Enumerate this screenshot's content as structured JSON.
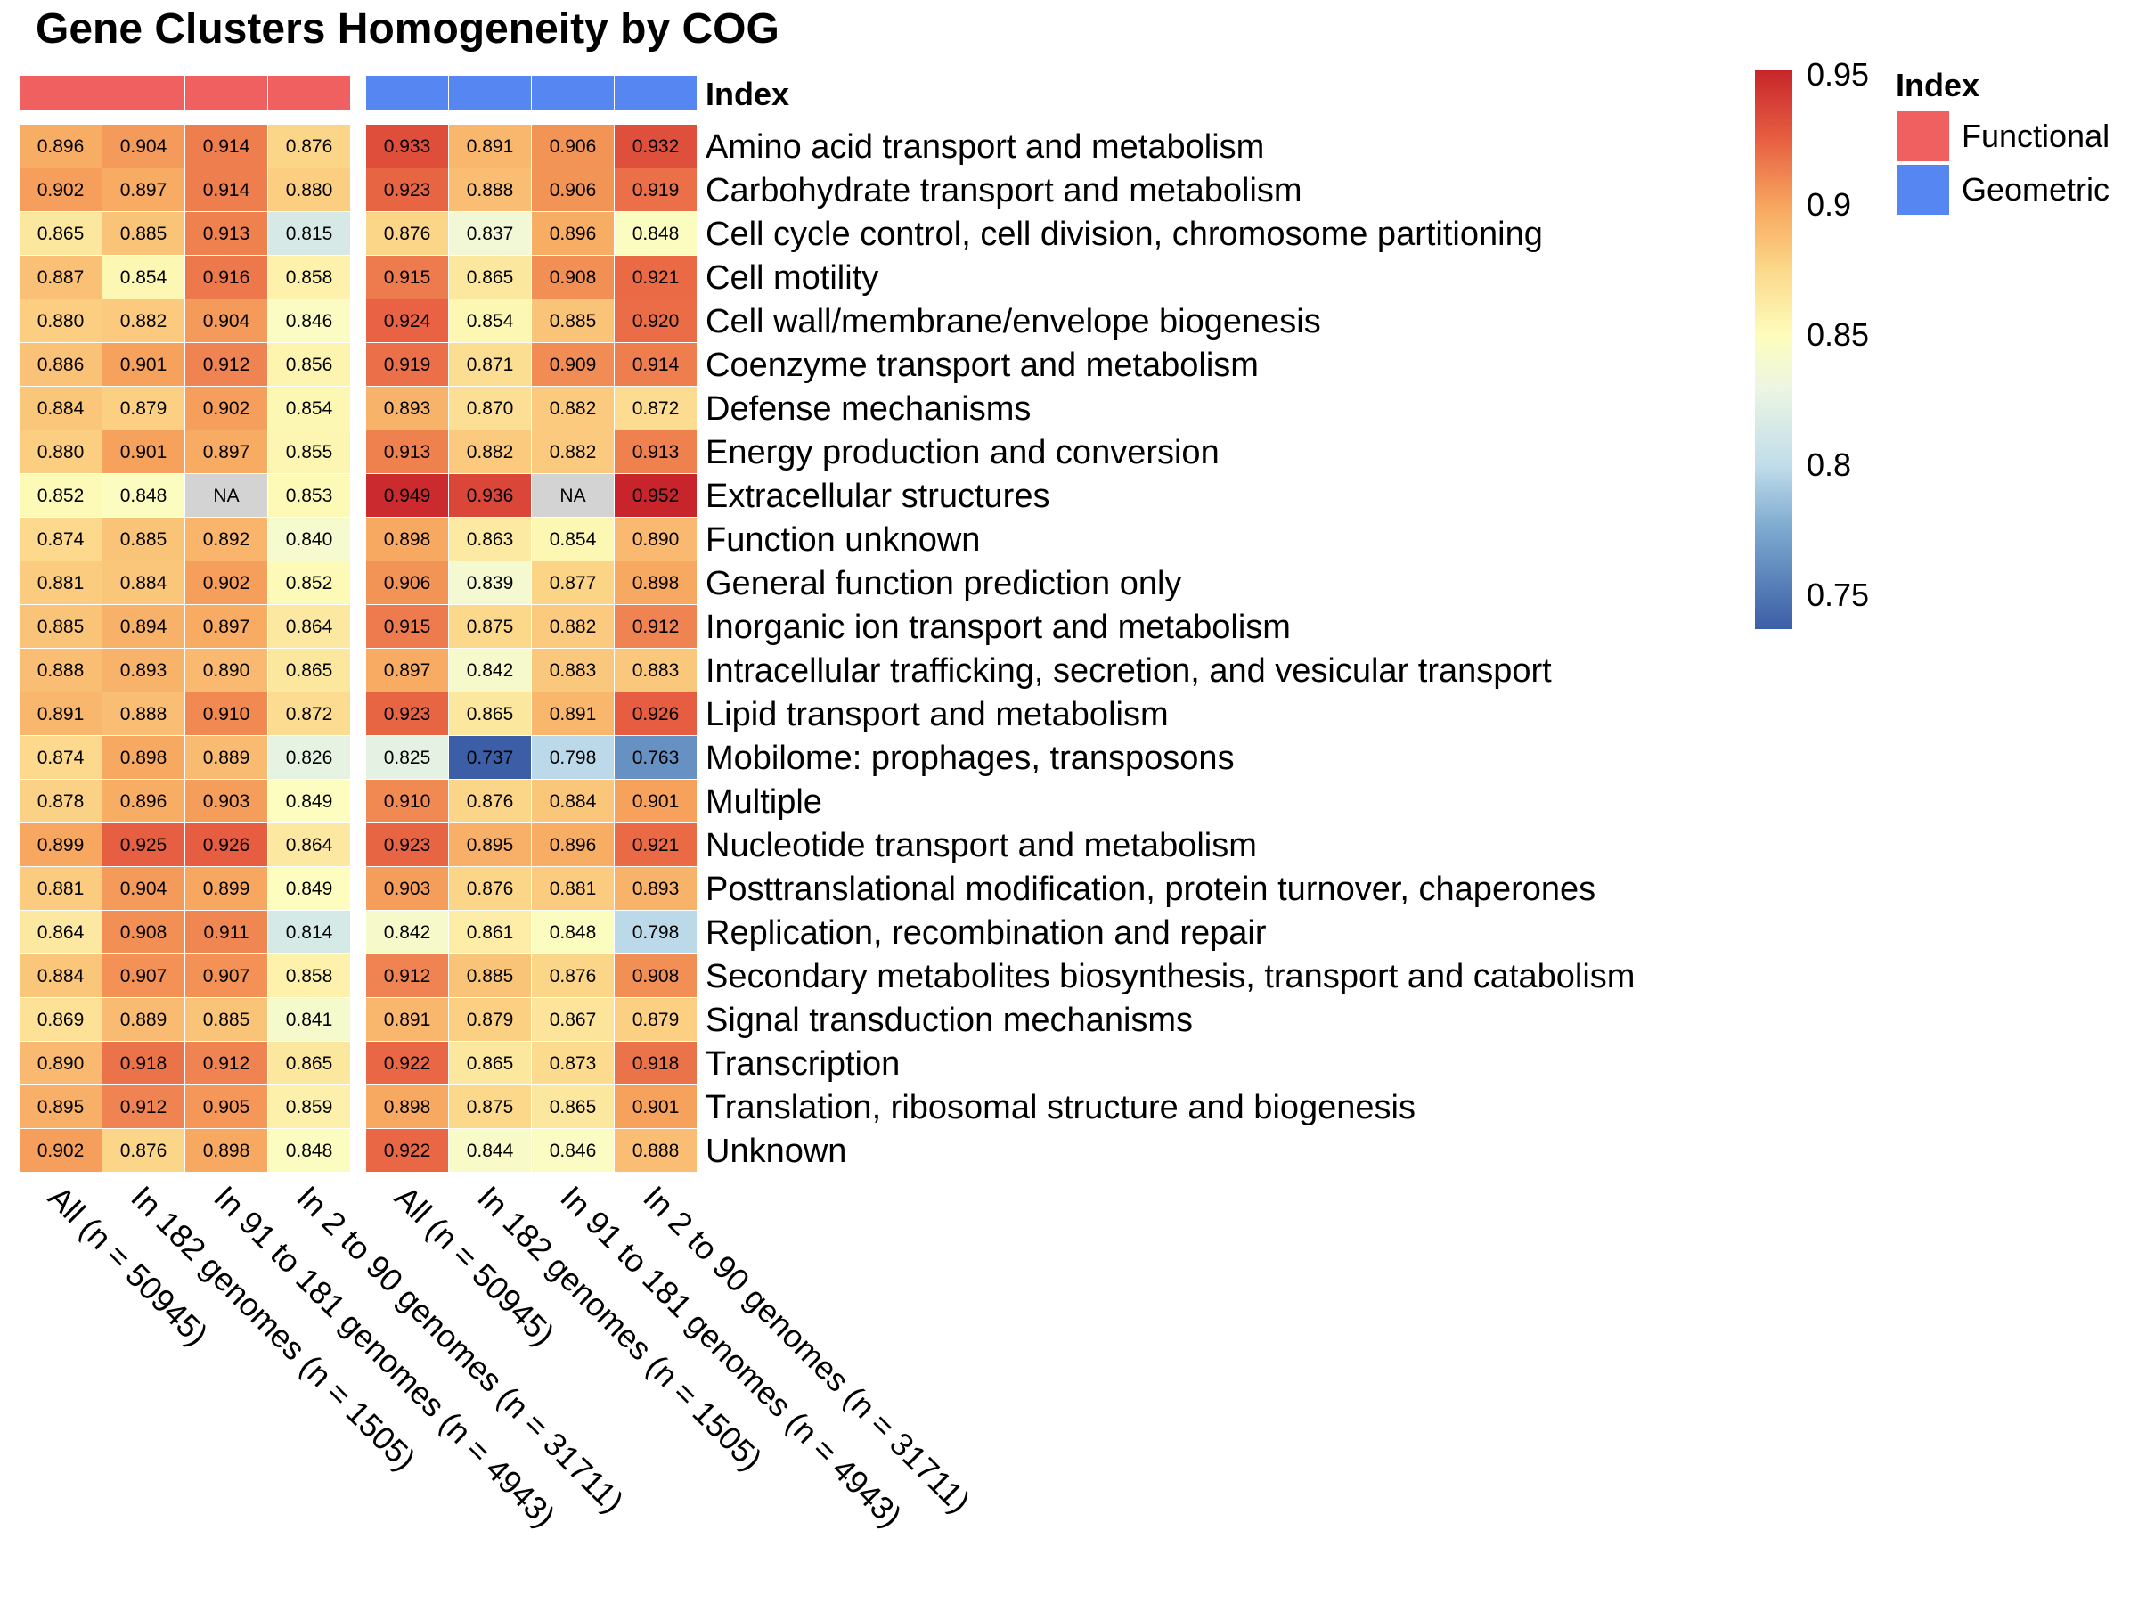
{
  "chart_data": {
    "type": "heatmap",
    "title": "Gene Clusters Homogeneity by COG",
    "annotation_title": "Index",
    "columns": [
      {
        "label": "All (n = 50945)",
        "group": "Functional"
      },
      {
        "label": "In 182 genomes (n = 1505)",
        "group": "Functional"
      },
      {
        "label": "In 91 to 181 genomes (n = 4943)",
        "group": "Functional"
      },
      {
        "label": "In 2 to 90 genomes (n = 31711)",
        "group": "Functional"
      },
      {
        "label": "All (n = 50945)",
        "group": "Geometric"
      },
      {
        "label": "In 182 genomes (n = 1505)",
        "group": "Geometric"
      },
      {
        "label": "In 91 to 181 genomes (n = 4943)",
        "group": "Geometric"
      },
      {
        "label": "In 2 to 90 genomes (n = 31711)",
        "group": "Geometric"
      }
    ],
    "rows": [
      "Amino acid transport and metabolism",
      "Carbohydrate transport and metabolism",
      "Cell cycle control, cell division, chromosome partitioning",
      "Cell motility",
      "Cell wall/membrane/envelope biogenesis",
      "Coenzyme transport and metabolism",
      "Defense mechanisms",
      "Energy production and conversion",
      "Extracellular structures",
      "Function unknown",
      "General function prediction only",
      "Inorganic ion transport and metabolism",
      "Intracellular trafficking, secretion, and vesicular transport",
      "Lipid transport and metabolism",
      "Mobilome: prophages, transposons",
      "Multiple",
      "Nucleotide transport and metabolism",
      "Posttranslational modification, protein turnover, chaperones",
      "Replication, recombination and repair",
      "Secondary metabolites biosynthesis, transport and catabolism",
      "Signal transduction mechanisms",
      "Transcription",
      "Translation, ribosomal structure and biogenesis",
      "Unknown"
    ],
    "values": [
      [
        "0.896",
        "0.904",
        "0.914",
        "0.876",
        "0.933",
        "0.891",
        "0.906",
        "0.932"
      ],
      [
        "0.902",
        "0.897",
        "0.914",
        "0.880",
        "0.923",
        "0.888",
        "0.906",
        "0.919"
      ],
      [
        "0.865",
        "0.885",
        "0.913",
        "0.815",
        "0.876",
        "0.837",
        "0.896",
        "0.848"
      ],
      [
        "0.887",
        "0.854",
        "0.916",
        "0.858",
        "0.915",
        "0.865",
        "0.908",
        "0.921"
      ],
      [
        "0.880",
        "0.882",
        "0.904",
        "0.846",
        "0.924",
        "0.854",
        "0.885",
        "0.920"
      ],
      [
        "0.886",
        "0.901",
        "0.912",
        "0.856",
        "0.919",
        "0.871",
        "0.909",
        "0.914"
      ],
      [
        "0.884",
        "0.879",
        "0.902",
        "0.854",
        "0.893",
        "0.870",
        "0.882",
        "0.872"
      ],
      [
        "0.880",
        "0.901",
        "0.897",
        "0.855",
        "0.913",
        "0.882",
        "0.882",
        "0.913"
      ],
      [
        "0.852",
        "0.848",
        "NA",
        "0.853",
        "0.949",
        "0.936",
        "NA",
        "0.952"
      ],
      [
        "0.874",
        "0.885",
        "0.892",
        "0.840",
        "0.898",
        "0.863",
        "0.854",
        "0.890"
      ],
      [
        "0.881",
        "0.884",
        "0.902",
        "0.852",
        "0.906",
        "0.839",
        "0.877",
        "0.898"
      ],
      [
        "0.885",
        "0.894",
        "0.897",
        "0.864",
        "0.915",
        "0.875",
        "0.882",
        "0.912"
      ],
      [
        "0.888",
        "0.893",
        "0.890",
        "0.865",
        "0.897",
        "0.842",
        "0.883",
        "0.883"
      ],
      [
        "0.891",
        "0.888",
        "0.910",
        "0.872",
        "0.923",
        "0.865",
        "0.891",
        "0.926"
      ],
      [
        "0.874",
        "0.898",
        "0.889",
        "0.826",
        "0.825",
        "0.737",
        "0.798",
        "0.763"
      ],
      [
        "0.878",
        "0.896",
        "0.903",
        "0.849",
        "0.910",
        "0.876",
        "0.884",
        "0.901"
      ],
      [
        "0.899",
        "0.925",
        "0.926",
        "0.864",
        "0.923",
        "0.895",
        "0.896",
        "0.921"
      ],
      [
        "0.881",
        "0.904",
        "0.899",
        "0.849",
        "0.903",
        "0.876",
        "0.881",
        "0.893"
      ],
      [
        "0.864",
        "0.908",
        "0.911",
        "0.814",
        "0.842",
        "0.861",
        "0.848",
        "0.798"
      ],
      [
        "0.884",
        "0.907",
        "0.907",
        "0.858",
        "0.912",
        "0.885",
        "0.876",
        "0.908"
      ],
      [
        "0.869",
        "0.889",
        "0.885",
        "0.841",
        "0.891",
        "0.879",
        "0.867",
        "0.879"
      ],
      [
        "0.890",
        "0.918",
        "0.912",
        "0.865",
        "0.922",
        "0.865",
        "0.873",
        "0.918"
      ],
      [
        "0.895",
        "0.912",
        "0.905",
        "0.859",
        "0.898",
        "0.875",
        "0.865",
        "0.901"
      ],
      [
        "0.902",
        "0.876",
        "0.898",
        "0.848",
        "0.922",
        "0.844",
        "0.846",
        "0.888"
      ]
    ],
    "na_color": "#d3d3d3",
    "color_scale": {
      "min": 0.737,
      "max": 0.952,
      "stops": [
        {
          "value": 0.737,
          "color": "#3c5ea6"
        },
        {
          "value": 0.775,
          "color": "#7ba8cf"
        },
        {
          "value": 0.8,
          "color": "#c1ddea"
        },
        {
          "value": 0.83,
          "color": "#ecf6e2"
        },
        {
          "value": 0.85,
          "color": "#fdfdbc"
        },
        {
          "value": 0.875,
          "color": "#fcd88a"
        },
        {
          "value": 0.9,
          "color": "#f7a55e"
        },
        {
          "value": 0.925,
          "color": "#e75f42"
        },
        {
          "value": 0.952,
          "color": "#c7242b"
        }
      ],
      "ticks": [
        "0.95",
        "0.9",
        "0.85",
        "0.8",
        "0.75"
      ]
    },
    "annotation_legend": [
      {
        "label": "Functional",
        "color": "#f06060"
      },
      {
        "label": "Geometric",
        "color": "#5586f2"
      }
    ]
  }
}
